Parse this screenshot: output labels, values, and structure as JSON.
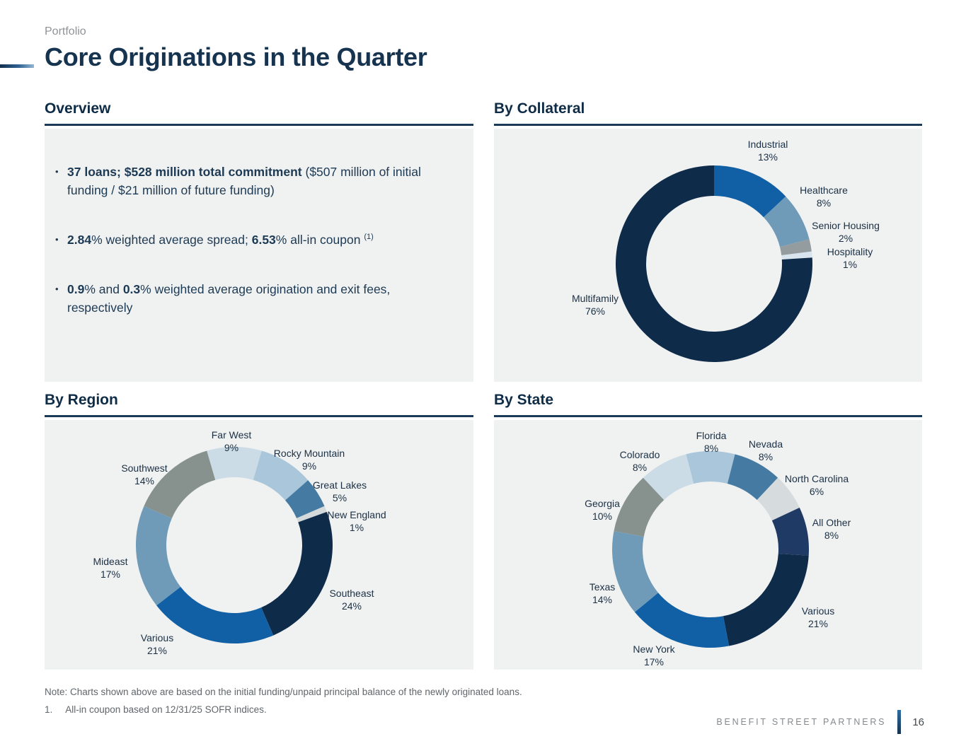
{
  "header": {
    "eyebrow": "Portfolio",
    "title": "Core Originations in the Quarter"
  },
  "overview": {
    "title": "Overview",
    "bullets": [
      [
        {
          "t": "37 loans; $528 million total commitment",
          "b": true
        },
        {
          "t": " ($507 million of initial funding / $21 million of future funding)",
          "b": false
        }
      ],
      [
        {
          "t": "2.84",
          "b": true
        },
        {
          "t": "% weighted average spread; ",
          "b": false
        },
        {
          "t": "6.53",
          "b": true
        },
        {
          "t": "% all-in coupon ",
          "b": false
        },
        {
          "t": "(1)",
          "b": false,
          "sup": true
        }
      ],
      [
        {
          "t": "0.9",
          "b": true
        },
        {
          "t": "% and ",
          "b": false
        },
        {
          "t": "0.3",
          "b": true
        },
        {
          "t": "% weighted average origination and exit fees, respectively",
          "b": false
        }
      ]
    ]
  },
  "chart_data": [
    {
      "id": "by_collateral",
      "type": "pie",
      "title": "By Collateral",
      "start_angle": 0,
      "slices": [
        {
          "label": "Industrial",
          "value": 13,
          "color": "#1160A5",
          "label_offset": [
            76,
            -160
          ]
        },
        {
          "label": "Healthcare",
          "value": 8,
          "color": "#6F9BB8",
          "label_offset": [
            155,
            -95
          ]
        },
        {
          "label": "Senior Housing",
          "value": 2,
          "color": "#949C9F",
          "label_offset": [
            186,
            -45
          ]
        },
        {
          "label": "Hospitality",
          "value": 1,
          "color": "#D9E5EE",
          "label_offset": [
            192,
            -8
          ]
        },
        {
          "label": "Multifamily",
          "value": 76,
          "color": "#0F2B4A",
          "label_offset": [
            -168,
            58
          ]
        }
      ]
    },
    {
      "id": "by_region",
      "type": "pie",
      "title": "By Region",
      "start_angle": -16.2,
      "slices": [
        {
          "label": "Far West",
          "value": 9,
          "color": "#CBDCE7",
          "label_offset": [
            -4,
            -147
          ]
        },
        {
          "label": "Rocky Mountain",
          "value": 9,
          "color": "#A9C6DA",
          "label_offset": [
            106,
            -121
          ]
        },
        {
          "label": "Great Lakes",
          "value": 5,
          "color": "#457BA3",
          "label_offset": [
            149,
            -76
          ]
        },
        {
          "label": "New England",
          "value": 1,
          "color": "#D4D9DB",
          "label_offset": [
            173,
            -34
          ]
        },
        {
          "label": "Southeast",
          "value": 24,
          "color": "#0F2B4A",
          "label_offset": [
            166,
            77
          ]
        },
        {
          "label": "Various",
          "value": 21,
          "color": "#1160A5",
          "label_offset": [
            -109,
            140
          ]
        },
        {
          "label": "Mideast",
          "value": 17,
          "color": "#6F9BB8",
          "label_offset": [
            -175,
            32
          ]
        },
        {
          "label": "Southwest",
          "value": 14,
          "color": "#87928F",
          "label_offset": [
            -127,
            -100
          ]
        }
      ]
    },
    {
      "id": "by_state",
      "type": "pie",
      "title": "By State",
      "start_angle": -14.4,
      "slices": [
        {
          "label": "Florida",
          "value": 8,
          "color": "#A9C6DA",
          "label_offset": [
            1,
            -152
          ]
        },
        {
          "label": "Nevada",
          "value": 8,
          "color": "#457BA3",
          "label_offset": [
            78,
            -140
          ]
        },
        {
          "label": "North Carolina",
          "value": 6,
          "color": "#D6DBDE",
          "label_offset": [
            150,
            -91
          ]
        },
        {
          "label": "All Other",
          "value": 8,
          "color": "#203A66",
          "label_offset": [
            171,
            -29
          ]
        },
        {
          "label": "Various",
          "value": 21,
          "color": "#0F2B4A",
          "label_offset": [
            152,
            96
          ]
        },
        {
          "label": "New York",
          "value": 17,
          "color": "#1160A5",
          "label_offset": [
            -80,
            150
          ]
        },
        {
          "label": "Texas",
          "value": 14,
          "color": "#6F9BB8",
          "label_offset": [
            -153,
            62
          ]
        },
        {
          "label": "Georgia",
          "value": 10,
          "color": "#87928F",
          "label_offset": [
            -153,
            -56
          ]
        },
        {
          "label": "Colorado",
          "value": 8,
          "color": "#CBDCE7",
          "label_offset": [
            -100,
            -125
          ]
        }
      ]
    }
  ],
  "footer": {
    "note": "Note: Charts shown above are based on the initial funding/unpaid principal balance of the newly originated loans.",
    "footnote_number": "1.",
    "footnote_text": "All-in coupon based on 12/31/25 SOFR indices.",
    "brand": "BENEFIT STREET PARTNERS",
    "page_number": "16"
  },
  "colors": {
    "accent_navy": "#16344F",
    "panel_bg": "#F0F1F1",
    "body_text": "#1D3A54",
    "note_gray": "#60666A"
  }
}
